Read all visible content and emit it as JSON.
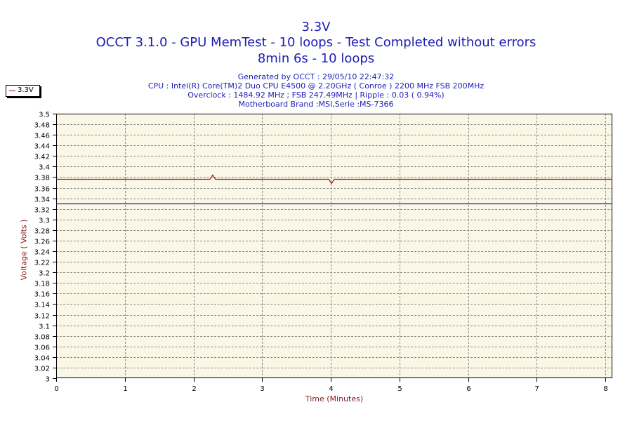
{
  "header": {
    "title": "3.3V",
    "subtitle": "OCCT 3.1.0 - GPU MemTest - 10 loops - Test Completed without errors",
    "subtitle2": "8min 6s - 10 loops",
    "info": [
      "Generated by OCCT : 29/05/10 22:47:32",
      "CPU : Intel(R) Core(TM)2 Duo CPU E4500 @ 2.20GHz ( Conroe ) 2200 MHz FSB 200MHz",
      "Overclock : 1484.92 MHz ; FSB 247.49MHz | Ripple : 0.03 ( 0.94%)",
      "Motherboard Brand :MSI,Serie :MS-7366"
    ]
  },
  "colors": {
    "plot_bg": "#fbf7e6",
    "grid": "#8a8a8a",
    "series": "#8b1a1a",
    "reference": "#1c1cb8",
    "title": "#1c1cb8",
    "axis_label": "#8b1a1a"
  },
  "chart_data": {
    "type": "line",
    "title": "3.3V",
    "xlabel": "Time (Minutes)",
    "ylabel": "Voltage ( Volts )",
    "xlim": [
      0,
      8.1
    ],
    "ylim": [
      3.0,
      3.5
    ],
    "x_ticks": [
      0,
      1,
      2,
      3,
      4,
      5,
      6,
      7,
      8
    ],
    "y_ticks": [
      3,
      3.02,
      3.04,
      3.06,
      3.08,
      3.1,
      3.12,
      3.14,
      3.16,
      3.18,
      3.2,
      3.22,
      3.24,
      3.26,
      3.28,
      3.3,
      3.32,
      3.34,
      3.36,
      3.38,
      3.4,
      3.42,
      3.44,
      3.46,
      3.48,
      3.5
    ],
    "y_tick_labels": [
      "3",
      "3.02",
      "3.04",
      "3.06",
      "3.08",
      "3.1",
      "3.12",
      "3.14",
      "3.16",
      "3.18",
      "3.2",
      "3.22",
      "3.24",
      "3.26",
      "3.28",
      "3.3",
      "3.32",
      "3.34",
      "3.36",
      "3.38",
      "3.4",
      "3.42",
      "3.44",
      "3.46",
      "3.48",
      "3.5"
    ],
    "grid": true,
    "legend_position": "top-left",
    "series": [
      {
        "name": "3.3V",
        "x": [
          0,
          2.24,
          2.28,
          2.32,
          3.97,
          4.01,
          4.05,
          8.1
        ],
        "y": [
          3.376,
          3.376,
          3.384,
          3.376,
          3.376,
          3.368,
          3.376,
          3.376
        ]
      }
    ],
    "reference_line": {
      "y": 3.33
    }
  }
}
